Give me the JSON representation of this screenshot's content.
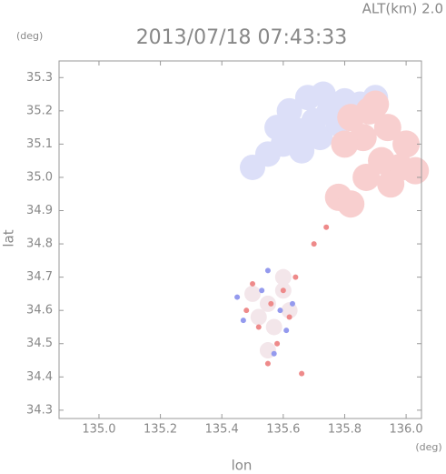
{
  "chart_data": {
    "type": "scatter",
    "title": "2013/07/18 07:43:33",
    "subtitle": "ALT(km) 2.0",
    "y_unit": "(deg)",
    "x_unit": "(deg)",
    "xlabel": "lon",
    "ylabel": "lat",
    "xlim": [
      134.87,
      136.05
    ],
    "ylim": [
      34.275,
      35.35
    ],
    "xticks": [
      {
        "value": 135,
        "label": "135.0"
      },
      135.2,
      135.4,
      135.6,
      135.8,
      {
        "value": 136,
        "label": "136.0"
      }
    ],
    "yticks": [
      34.3,
      34.4,
      34.5,
      34.6,
      34.7,
      34.8,
      34.9,
      {
        "value": 35,
        "label": "35.0"
      },
      35.1,
      35.2,
      35.3
    ],
    "series": [
      {
        "color": "#dcdff8",
        "marker_size": 14,
        "x": [
          135.5,
          135.55,
          135.6,
          135.65,
          135.7,
          135.75,
          135.8,
          135.62,
          135.68,
          135.73,
          135.58,
          135.66,
          135.72,
          135.78,
          135.85,
          135.9
        ],
        "y": [
          35.03,
          35.07,
          35.1,
          35.14,
          35.17,
          35.2,
          35.23,
          35.2,
          35.24,
          35.25,
          35.15,
          35.08,
          35.12,
          35.16,
          35.22,
          35.24
        ]
      },
      {
        "color": "#f8cfcf",
        "marker_size": 15,
        "x": [
          135.82,
          135.88,
          135.94,
          136.0,
          135.86,
          135.92,
          135.98,
          135.8,
          135.87,
          135.95,
          135.9,
          136.03,
          135.78,
          135.82
        ],
        "y": [
          35.18,
          35.2,
          35.15,
          35.1,
          35.12,
          35.05,
          35.03,
          35.1,
          35.0,
          34.98,
          35.22,
          35.02,
          34.94,
          34.92
        ]
      },
      {
        "color": "#f3e6ea",
        "marker_size": 9,
        "x": [
          135.5,
          135.55,
          135.6,
          135.52,
          135.57,
          135.62,
          135.55,
          135.6
        ],
        "y": [
          34.65,
          34.62,
          34.66,
          34.58,
          34.55,
          34.6,
          34.48,
          34.7
        ]
      },
      {
        "color": "#ee8a8a",
        "marker_size": 3,
        "x": [
          135.5,
          135.56,
          135.6,
          135.48,
          135.62,
          135.58,
          135.64,
          135.52,
          135.55,
          135.66,
          135.7,
          135.74
        ],
        "y": [
          34.68,
          34.62,
          34.66,
          34.6,
          34.58,
          34.5,
          34.7,
          34.55,
          34.44,
          34.41,
          34.8,
          34.85
        ]
      },
      {
        "color": "#949aee",
        "marker_size": 3,
        "x": [
          135.45,
          135.53,
          135.59,
          135.61,
          135.47,
          135.57,
          135.63,
          135.55
        ],
        "y": [
          34.64,
          34.66,
          34.6,
          34.54,
          34.57,
          34.47,
          34.62,
          34.72
        ]
      }
    ]
  }
}
